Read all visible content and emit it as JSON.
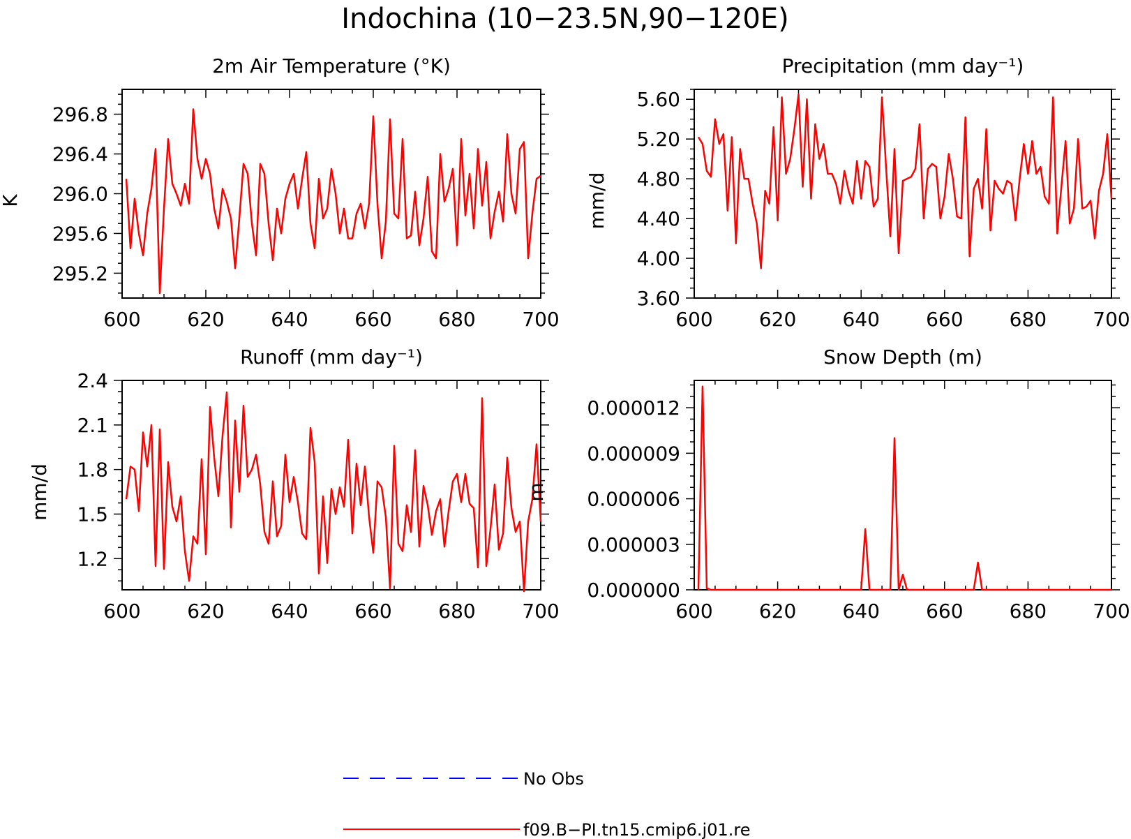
{
  "figure": {
    "title": "Indochina (10−23.5N,90−120E)"
  },
  "colors": {
    "model": "#ff0000",
    "obs": "#0000ff",
    "axis": "#000000"
  },
  "legend": {
    "items": [
      {
        "label": "No Obs",
        "color": "#0000ff",
        "style": "dashed"
      },
      {
        "label": "f09.B−PI.tn15.cmip6.j01.re",
        "color": "#ff0000",
        "style": "solid"
      }
    ]
  },
  "chart_data": [
    {
      "id": "temp",
      "type": "line",
      "title": "2m Air Temperature (°K)",
      "xlabel": "",
      "ylabel": "K",
      "xlim": [
        600,
        700
      ],
      "ylim": [
        294.95,
        297.05
      ],
      "xticks": [
        600,
        620,
        640,
        660,
        680,
        700
      ],
      "yticks": [
        295.2,
        295.6,
        296.0,
        296.4,
        296.8
      ],
      "ytick_labels": [
        "295.2",
        "295.6",
        "296.0",
        "296.4",
        "296.8"
      ],
      "grid": false,
      "series": [
        {
          "color": "#ff0000",
          "x_start": 601,
          "x_step": 1,
          "values": [
            296.15,
            295.45,
            295.95,
            295.6,
            295.38,
            295.8,
            296.05,
            296.45,
            295.0,
            295.85,
            296.55,
            296.1,
            296.0,
            295.88,
            296.1,
            295.9,
            296.85,
            296.35,
            296.15,
            296.35,
            296.2,
            295.85,
            295.65,
            296.05,
            295.92,
            295.75,
            295.25,
            295.75,
            296.3,
            296.2,
            295.7,
            295.38,
            296.3,
            296.2,
            295.7,
            295.33,
            295.85,
            295.6,
            295.95,
            296.1,
            296.2,
            295.85,
            296.15,
            296.42,
            295.7,
            295.45,
            296.15,
            295.75,
            295.85,
            296.25,
            296.0,
            295.6,
            295.85,
            295.55,
            295.55,
            295.8,
            295.9,
            295.65,
            295.9,
            296.78,
            295.9,
            295.35,
            295.72,
            296.75,
            295.8,
            295.75,
            296.55,
            295.55,
            295.58,
            296.02,
            295.48,
            295.75,
            296.17,
            295.42,
            295.35,
            296.4,
            295.92,
            296.05,
            296.25,
            295.48,
            296.55,
            295.78,
            296.2,
            295.65,
            296.45,
            295.88,
            296.32,
            295.55,
            295.82,
            296.02,
            295.72,
            296.6,
            296.0,
            295.8,
            296.45,
            296.52,
            295.35,
            295.8,
            296.15,
            296.18
          ]
        }
      ]
    },
    {
      "id": "precip",
      "type": "line",
      "title": "Precipitation (mm day⁻¹)",
      "xlabel": "",
      "ylabel": "mm/d",
      "xlim": [
        600,
        700
      ],
      "ylim": [
        3.6,
        5.7
      ],
      "xticks": [
        600,
        620,
        640,
        660,
        680,
        700
      ],
      "yticks": [
        3.6,
        4.0,
        4.4,
        4.8,
        5.2,
        5.6
      ],
      "ytick_labels": [
        "3.60",
        "4.00",
        "4.40",
        "4.80",
        "5.20",
        "5.60"
      ],
      "grid": false,
      "series": [
        {
          "color": "#ff0000",
          "x_start": 601,
          "x_step": 1,
          "values": [
            5.22,
            5.15,
            4.88,
            4.82,
            5.4,
            5.15,
            5.25,
            4.48,
            5.22,
            4.15,
            5.1,
            4.8,
            4.8,
            4.55,
            4.35,
            3.9,
            4.68,
            4.55,
            5.32,
            4.38,
            5.62,
            4.85,
            5.0,
            5.3,
            5.65,
            4.72,
            5.6,
            4.6,
            5.35,
            5.0,
            5.15,
            4.85,
            4.85,
            4.75,
            4.55,
            4.88,
            4.68,
            4.55,
            4.98,
            4.6,
            4.98,
            4.92,
            4.52,
            4.6,
            5.62,
            4.9,
            4.22,
            5.1,
            4.05,
            4.78,
            4.8,
            4.82,
            4.9,
            5.35,
            4.4,
            4.9,
            4.95,
            4.92,
            4.4,
            4.62,
            5.05,
            4.8,
            4.42,
            4.4,
            5.42,
            4.02,
            4.7,
            4.8,
            4.5,
            5.3,
            4.28,
            4.78,
            4.7,
            4.65,
            4.78,
            4.75,
            4.38,
            4.8,
            5.15,
            4.85,
            5.18,
            4.85,
            4.92,
            4.62,
            4.55,
            5.62,
            4.25,
            4.72,
            5.18,
            4.35,
            4.5,
            5.2,
            4.5,
            4.52,
            4.58,
            4.2,
            4.68,
            4.85,
            5.25,
            4.6
          ]
        }
      ]
    },
    {
      "id": "runoff",
      "type": "line",
      "title": "Runoff (mm day⁻¹)",
      "xlabel": "",
      "ylabel": "mm/d",
      "xlim": [
        600,
        700
      ],
      "ylim": [
        0.99,
        2.4
      ],
      "xticks": [
        600,
        620,
        640,
        660,
        680,
        700
      ],
      "yticks": [
        1.2,
        1.5,
        1.8,
        2.1,
        2.4
      ],
      "ytick_labels": [
        "1.2",
        "1.5",
        "1.8",
        "2.1",
        "2.4"
      ],
      "grid": false,
      "series": [
        {
          "color": "#ff0000",
          "x_start": 601,
          "x_step": 1,
          "values": [
            1.6,
            1.82,
            1.8,
            1.52,
            2.05,
            1.82,
            2.1,
            1.15,
            2.07,
            1.13,
            1.85,
            1.55,
            1.45,
            1.62,
            1.25,
            1.05,
            1.35,
            1.3,
            1.87,
            1.23,
            2.22,
            1.88,
            1.62,
            2.03,
            2.32,
            1.41,
            2.13,
            1.65,
            2.23,
            1.75,
            1.8,
            1.9,
            1.7,
            1.38,
            1.3,
            1.72,
            1.35,
            1.42,
            1.9,
            1.58,
            1.75,
            1.58,
            1.37,
            1.33,
            2.08,
            1.85,
            1.1,
            1.62,
            1.17,
            1.67,
            1.5,
            1.68,
            1.55,
            2.0,
            1.37,
            1.84,
            1.56,
            1.82,
            1.48,
            1.24,
            1.72,
            1.68,
            1.48,
            1.0,
            1.96,
            1.3,
            1.25,
            1.56,
            1.38,
            1.93,
            1.28,
            1.69,
            1.56,
            1.36,
            1.52,
            1.6,
            1.28,
            1.52,
            1.72,
            1.77,
            1.58,
            1.77,
            1.57,
            1.54,
            1.14,
            2.28,
            1.15,
            1.4,
            1.7,
            1.26,
            1.37,
            1.88,
            1.54,
            1.38,
            1.45,
            0.98,
            1.45,
            1.6,
            1.97,
            1.45
          ]
        }
      ]
    },
    {
      "id": "snow",
      "type": "line",
      "title": "Snow Depth (m)",
      "xlabel": "",
      "ylabel": "m",
      "xlim": [
        600,
        700
      ],
      "ylim": [
        0,
        1.38e-05
      ],
      "xticks": [
        600,
        620,
        640,
        660,
        680,
        700
      ],
      "yticks": [
        0,
        3e-06,
        6e-06,
        9e-06,
        1.2e-05
      ],
      "ytick_labels": [
        "0.000000",
        "0.000003",
        "0.000006",
        "0.000009",
        "0.000012"
      ],
      "grid": false,
      "series": [
        {
          "color": "#ff0000",
          "x_start": 601,
          "x_step": 1,
          "values": [
            0,
            1.34e-05,
            1e-07,
            0,
            0,
            0,
            0,
            0,
            0,
            0,
            0,
            0,
            0,
            0,
            0,
            0,
            0,
            0,
            0,
            0,
            0,
            0,
            0,
            0,
            0,
            0,
            0,
            0,
            0,
            0,
            0,
            0,
            0,
            0,
            0,
            0,
            0,
            0,
            0,
            0,
            4e-06,
            0,
            0,
            0,
            0,
            0,
            0,
            1e-05,
            0,
            1e-06,
            0,
            0,
            0,
            0,
            0,
            0,
            0,
            0,
            0,
            0,
            0,
            0,
            0,
            0,
            0,
            0,
            0,
            1.8e-06,
            0,
            0,
            0,
            0,
            0,
            0,
            0,
            0,
            0,
            0,
            0,
            0,
            0,
            0,
            0,
            0,
            0,
            0,
            0,
            0,
            0,
            0,
            0,
            0,
            0,
            0,
            0,
            0,
            0,
            0,
            0,
            0
          ]
        }
      ]
    }
  ]
}
